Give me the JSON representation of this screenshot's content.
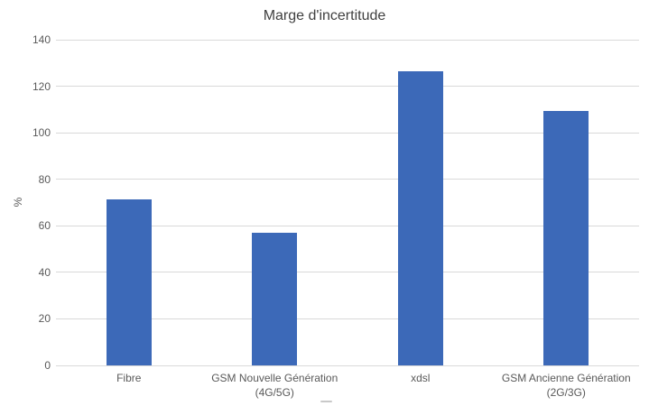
{
  "chart_data": {
    "type": "bar",
    "title": "Marge d'incertitude",
    "ylabel": "%",
    "xlabel": "",
    "categories": [
      [
        "Fibre"
      ],
      [
        "GSM Nouvelle Génération",
        "(4G/5G)"
      ],
      [
        "xdsl"
      ],
      [
        "GSM Ancienne Génération",
        "(2G/3G)"
      ]
    ],
    "values": [
      71.5,
      57,
      126.5,
      109.5
    ],
    "ylim": [
      0,
      140
    ],
    "yticks": [
      0,
      20,
      40,
      60,
      80,
      100,
      120,
      140
    ],
    "grid": true,
    "legend": "none",
    "colors": {
      "bar": "#3C69B8",
      "gridline": "#D9D9D9",
      "tick_label": "#595959",
      "category_label": "#595959",
      "title": "#404040",
      "axis_label": "#595959",
      "background": "#FFFFFF",
      "artifact": "#C9C9C9"
    }
  }
}
